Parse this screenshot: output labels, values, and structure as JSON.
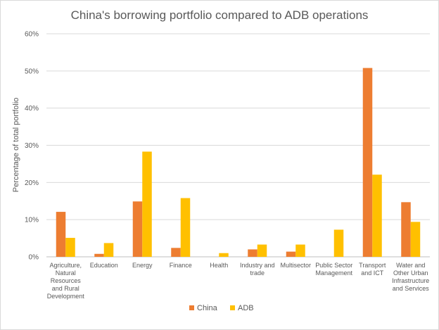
{
  "chart_data": {
    "type": "bar",
    "title": "China's borrowing portfolio compared to ADB operations",
    "xlabel": "",
    "ylabel": "Percentage of total portfolio",
    "ylim": [
      0,
      60
    ],
    "yticks": [
      "0%",
      "10%",
      "20%",
      "30%",
      "40%",
      "50%",
      "60%"
    ],
    "grid": true,
    "legend": "bottom",
    "categories": [
      "Agriculture, Natural Resources and Rural Development",
      "Education",
      "Energy",
      "Finance",
      "Health",
      "Industry and trade",
      "Multisector",
      "Public Sector Management",
      "Transport and ICT",
      "Water and Other Urban Infrastructure and Services"
    ],
    "category_lines": [
      [
        "Agriculture,",
        "Natural",
        "Resources",
        "and Rural",
        "Development"
      ],
      [
        "Education"
      ],
      [
        "Energy"
      ],
      [
        "Finance"
      ],
      [
        "Health"
      ],
      [
        "Industry and",
        "trade"
      ],
      [
        "Multisector"
      ],
      [
        "Public Sector",
        "Management"
      ],
      [
        "Transport",
        "and ICT"
      ],
      [
        "Water and",
        "Other Urban",
        "Infrastructure",
        "and Services"
      ]
    ],
    "series": [
      {
        "name": "China",
        "color": "#ed7d31",
        "values": [
          12.1,
          0.8,
          14.9,
          2.4,
          0,
          2.0,
          1.4,
          0,
          50.8,
          14.7
        ]
      },
      {
        "name": "ADB",
        "color": "#ffc000",
        "values": [
          5.1,
          3.7,
          28.3,
          15.8,
          1.0,
          3.3,
          3.3,
          7.3,
          22.1,
          9.4
        ]
      }
    ]
  }
}
